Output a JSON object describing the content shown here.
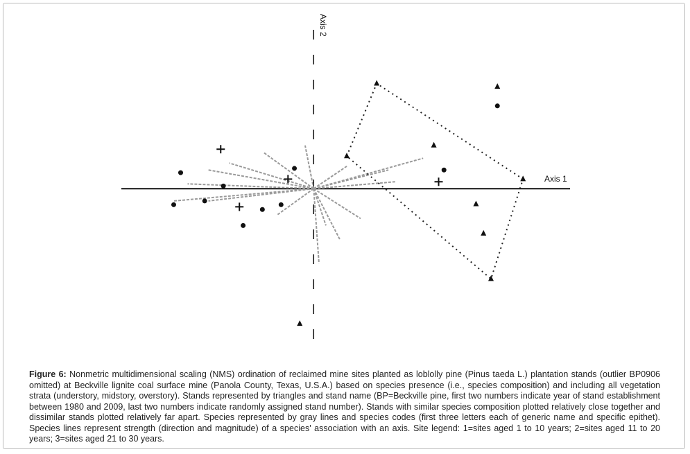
{
  "chart_data": {
    "type": "scatter",
    "x_label": "Axis 1",
    "y_label": "Axis 2",
    "xlim": [
      -3.6,
      4.8
    ],
    "ylim": [
      -3.1,
      3.3
    ],
    "series": [
      {
        "marker": "triangle",
        "color": "#111111",
        "hull": true,
        "x": [
          0.62,
          1.18,
          3.92,
          3.32
        ],
        "values": [
          0.61,
          1.97,
          0.18,
          -1.69
        ]
      },
      {
        "marker": "triangle",
        "color": "#111111",
        "x": [
          3.04,
          3.18,
          -0.26,
          3.44,
          2.25
        ],
        "values": [
          -0.29,
          -0.84,
          -2.53,
          1.91,
          0.81
        ]
      },
      {
        "marker": "circle",
        "color": "#111111",
        "x": [
          -2.49,
          -1.69,
          -2.62,
          -2.04,
          -1.32,
          -0.96,
          -0.36,
          2.44,
          -0.61,
          3.44
        ],
        "values": [
          0.3,
          0.05,
          -0.3,
          -0.23,
          -0.69,
          -0.39,
          0.38,
          0.35,
          -0.3,
          1.55
        ]
      },
      {
        "marker": "plus",
        "color": "#111111",
        "x": [
          -0.48,
          2.34,
          -1.39,
          -1.74
        ],
        "values": [
          0.18,
          0.13,
          -0.34,
          0.74
        ]
      },
      {
        "marker": "vector",
        "color": "#9a9a9a",
        "x": [
          -2.36,
          -1.97,
          -1.58,
          -0.94,
          -0.16,
          0.62,
          1.4,
          2.05,
          1.53,
          0.23,
          0.49,
          0.88,
          0.1,
          -0.68,
          -1.97,
          -2.62
        ],
        "values": [
          0.09,
          0.35,
          0.48,
          0.68,
          0.81,
          0.42,
          0.35,
          0.57,
          0.13,
          -0.69,
          -0.95,
          -0.56,
          -1.4,
          -0.49,
          -0.23,
          -0.23
        ]
      }
    ]
  },
  "caption": {
    "label": "Figure 6:",
    "text": "Nonmetric multidimensional scaling (NMS) ordination of reclaimed mine sites planted as loblolly pine (Pinus taeda L.) plantation stands (outlier BP0906 omitted) at Beckville lignite coal surface mine (Panola County, Texas, U.S.A.) based on species presence (i.e., species composition) and including all vegetation strata (understory, midstory, overstory). Stands represented by triangles and stand name (BP=Beckville pine, first two numbers indicate year of stand establishment between 1980 and 2009, last two numbers indicate randomly assigned stand number). Stands with similar species composition plotted relatively close together and dissimilar stands plotted relatively far apart. Species represented by gray lines and species codes (first three letters each of generic name and specific epithet). Species lines represent strength (direction and magnitude) of a species' association with an axis. Site legend: 1=sites aged 1 to 10 years; 2=sites aged 11 to 20 years; 3=sites aged 21 to 30 years."
  }
}
